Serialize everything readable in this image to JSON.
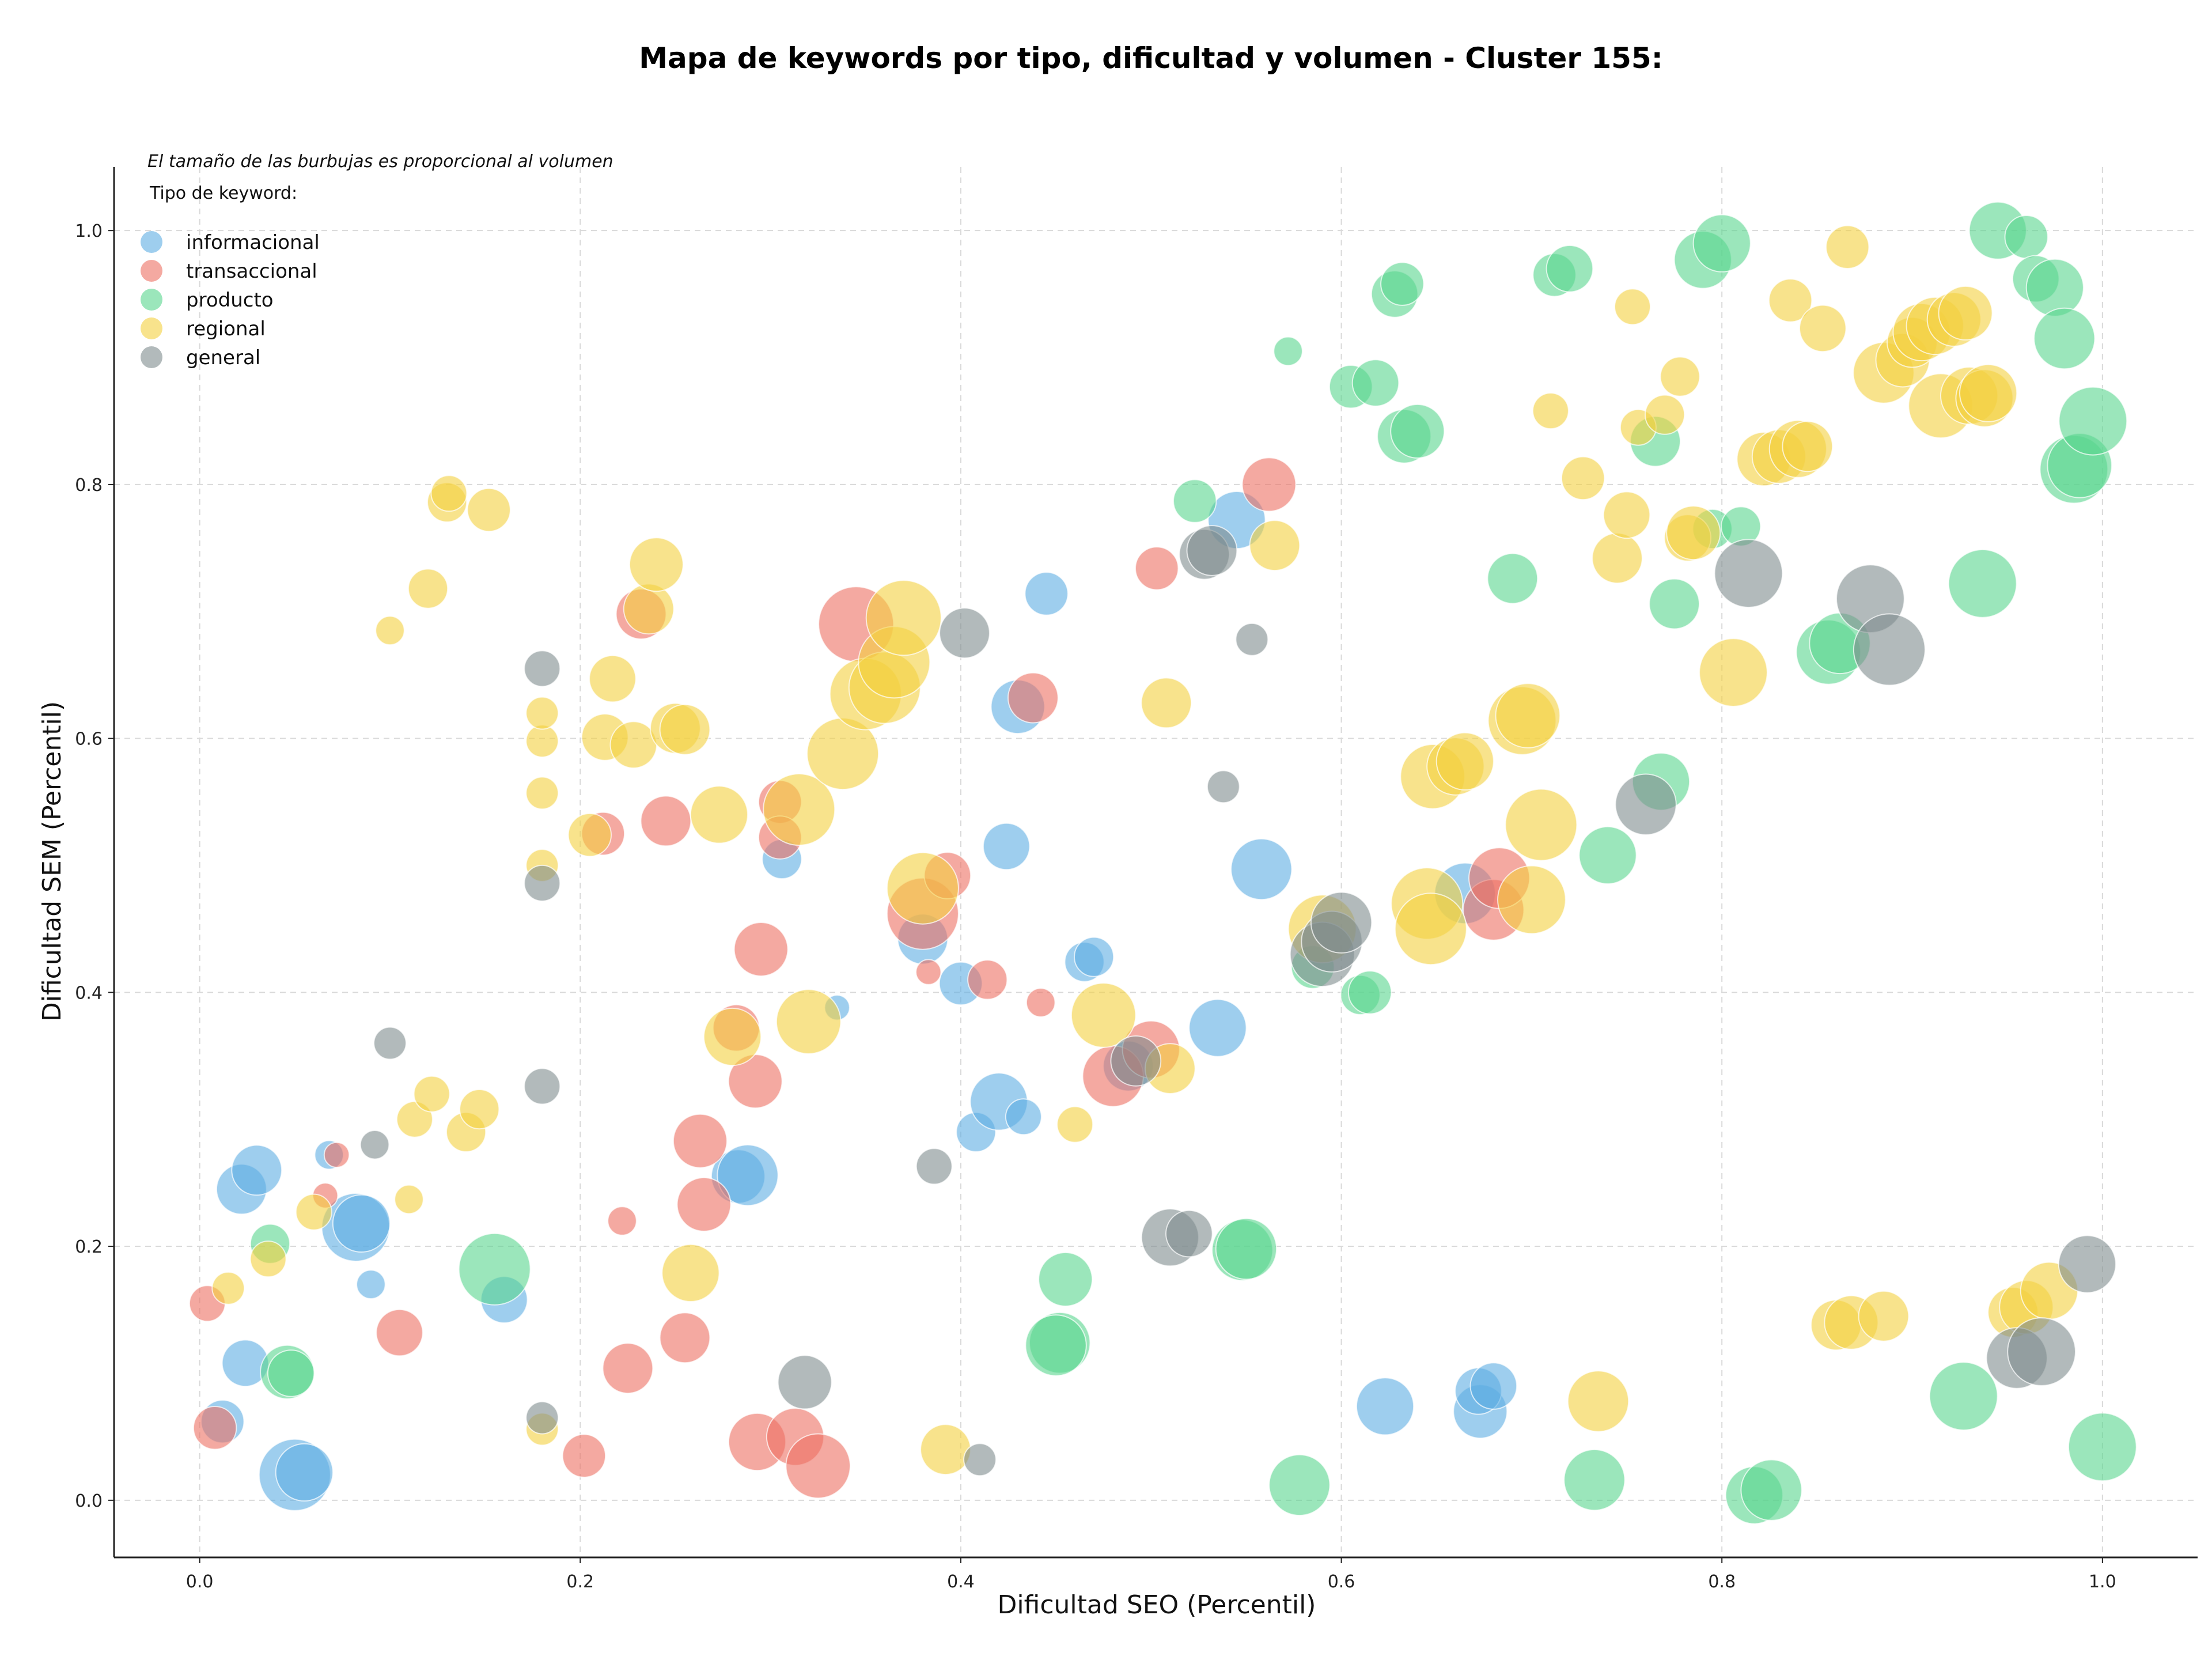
{
  "chart_data": {
    "type": "scatter",
    "title": "Mapa de keywords por tipo, dificultad y volumen - Cluster 155:",
    "xlabel": "Dificultad SEO (Percentil)",
    "ylabel": "Dificultad SEM (Percentil)",
    "annotation": "El tamaño de las burbujas es proporcional al volumen",
    "xlim": [
      -0.045,
      1.05
    ],
    "ylim": [
      -0.045,
      1.05
    ],
    "xticks": [
      "0.0",
      "0.2",
      "0.4",
      "0.6",
      "0.8",
      "1.0"
    ],
    "yticks": [
      "0.0",
      "0.2",
      "0.4",
      "0.6",
      "0.8",
      "1.0"
    ],
    "grid": true,
    "legend": {
      "title": "Tipo de keyword:",
      "placement": "top-left",
      "entries": [
        "informacional",
        "transaccional",
        "producto",
        "regional",
        "general"
      ]
    },
    "series": [
      {
        "name": "informacional",
        "color": "#5dade2",
        "points": [
          [
            0.012,
            0.062,
            12
          ],
          [
            0.022,
            0.245,
            14
          ],
          [
            0.03,
            0.26,
            14
          ],
          [
            0.024,
            0.108,
            13
          ],
          [
            0.05,
            0.02,
            20
          ],
          [
            0.055,
            0.022,
            16
          ],
          [
            0.068,
            0.272,
            8
          ],
          [
            0.082,
            0.215,
            19
          ],
          [
            0.085,
            0.218,
            16
          ],
          [
            0.09,
            0.17,
            8
          ],
          [
            0.16,
            0.158,
            13
          ],
          [
            0.306,
            0.505,
            11
          ],
          [
            0.335,
            0.388,
            7
          ],
          [
            0.38,
            0.442,
            14
          ],
          [
            0.4,
            0.407,
            12
          ],
          [
            0.408,
            0.29,
            11
          ],
          [
            0.42,
            0.314,
            16
          ],
          [
            0.424,
            0.515,
            13
          ],
          [
            0.433,
            0.302,
            10
          ],
          [
            0.43,
            0.625,
            15
          ],
          [
            0.445,
            0.714,
            12
          ],
          [
            0.465,
            0.424,
            11
          ],
          [
            0.47,
            0.428,
            11
          ],
          [
            0.488,
            0.342,
            14
          ],
          [
            0.535,
            0.372,
            16
          ],
          [
            0.545,
            0.772,
            16
          ],
          [
            0.558,
            0.497,
            17
          ],
          [
            0.623,
            0.074,
            16
          ],
          [
            0.665,
            0.478,
            17
          ],
          [
            0.673,
            0.07,
            15
          ],
          [
            0.672,
            0.086,
            13
          ],
          [
            0.68,
            0.09,
            13
          ],
          [
            0.283,
            0.255,
            15
          ],
          [
            0.288,
            0.256,
            17
          ]
        ]
      },
      {
        "name": "transaccional",
        "color": "#ec7063",
        "points": [
          [
            0.004,
            0.155,
            10
          ],
          [
            0.008,
            0.057,
            12
          ],
          [
            0.066,
            0.24,
            7
          ],
          [
            0.072,
            0.272,
            7
          ],
          [
            0.105,
            0.132,
            13
          ],
          [
            0.202,
            0.035,
            12
          ],
          [
            0.212,
            0.525,
            12
          ],
          [
            0.222,
            0.22,
            8
          ],
          [
            0.225,
            0.104,
            14
          ],
          [
            0.232,
            0.698,
            14
          ],
          [
            0.245,
            0.535,
            14
          ],
          [
            0.255,
            0.128,
            14
          ],
          [
            0.263,
            0.283,
            15
          ],
          [
            0.265,
            0.233,
            15
          ],
          [
            0.282,
            0.372,
            13
          ],
          [
            0.292,
            0.33,
            15
          ],
          [
            0.295,
            0.434,
            15
          ],
          [
            0.293,
            0.046,
            16
          ],
          [
            0.305,
            0.55,
            12
          ],
          [
            0.305,
            0.522,
            12
          ],
          [
            0.313,
            0.05,
            16
          ],
          [
            0.325,
            0.027,
            18
          ],
          [
            0.345,
            0.69,
            21
          ],
          [
            0.38,
            0.462,
            20
          ],
          [
            0.383,
            0.416,
            7
          ],
          [
            0.393,
            0.492,
            13
          ],
          [
            0.414,
            0.41,
            11
          ],
          [
            0.438,
            0.632,
            14
          ],
          [
            0.442,
            0.392,
            8
          ],
          [
            0.48,
            0.334,
            17
          ],
          [
            0.5,
            0.355,
            16
          ],
          [
            0.503,
            0.734,
            12
          ],
          [
            0.562,
            0.8,
            15
          ],
          [
            0.68,
            0.465,
            17
          ],
          [
            0.683,
            0.49,
            17
          ]
        ]
      },
      {
        "name": "producto",
        "color": "#58d68d",
        "points": [
          [
            0.037,
            0.202,
            11
          ],
          [
            0.046,
            0.101,
            15
          ],
          [
            0.048,
            0.1,
            13
          ],
          [
            0.155,
            0.182,
            20
          ],
          [
            0.455,
            0.174,
            15
          ],
          [
            0.452,
            0.124,
            17
          ],
          [
            0.45,
            0.122,
            17
          ],
          [
            0.523,
            0.787,
            12
          ],
          [
            0.548,
            0.197,
            17
          ],
          [
            0.55,
            0.198,
            17
          ],
          [
            0.572,
            0.905,
            8
          ],
          [
            0.578,
            0.012,
            17
          ],
          [
            0.585,
            0.42,
            12
          ],
          [
            0.605,
            0.877,
            12
          ],
          [
            0.61,
            0.398,
            11
          ],
          [
            0.615,
            0.4,
            12
          ],
          [
            0.618,
            0.88,
            13
          ],
          [
            0.628,
            0.95,
            13
          ],
          [
            0.632,
            0.958,
            12
          ],
          [
            0.633,
            0.838,
            15
          ],
          [
            0.64,
            0.842,
            15
          ],
          [
            0.69,
            0.726,
            14
          ],
          [
            0.712,
            0.965,
            12
          ],
          [
            0.72,
            0.97,
            13
          ],
          [
            0.733,
            0.016,
            17
          ],
          [
            0.74,
            0.508,
            16
          ],
          [
            0.768,
            0.566,
            16
          ],
          [
            0.765,
            0.834,
            14
          ],
          [
            0.775,
            0.706,
            14
          ],
          [
            0.79,
            0.977,
            16
          ],
          [
            0.8,
            0.99,
            16
          ],
          [
            0.795,
            0.765,
            11
          ],
          [
            0.81,
            0.767,
            11
          ],
          [
            0.817,
            0.004,
            16
          ],
          [
            0.826,
            0.008,
            17
          ],
          [
            0.856,
            0.668,
            18
          ],
          [
            0.862,
            0.675,
            17
          ],
          [
            0.927,
            0.082,
            19
          ],
          [
            0.937,
            0.722,
            19
          ],
          [
            0.945,
            1.0,
            16
          ],
          [
            0.96,
            0.995,
            12
          ],
          [
            0.965,
            0.962,
            13
          ],
          [
            0.975,
            0.955,
            16
          ],
          [
            0.98,
            0.915,
            17
          ],
          [
            0.985,
            0.812,
            19
          ],
          [
            0.988,
            0.815,
            18
          ],
          [
            0.995,
            0.85,
            19
          ],
          [
            1.0,
            0.042,
            19
          ]
        ]
      },
      {
        "name": "regional",
        "color": "#f4d03f",
        "points": [
          [
            0.015,
            0.167,
            9
          ],
          [
            0.036,
            0.19,
            10
          ],
          [
            0.06,
            0.227,
            10
          ],
          [
            0.1,
            0.685,
            8
          ],
          [
            0.11,
            0.237,
            8
          ],
          [
            0.113,
            0.3,
            10
          ],
          [
            0.12,
            0.718,
            11
          ],
          [
            0.122,
            0.32,
            10
          ],
          [
            0.13,
            0.786,
            11
          ],
          [
            0.131,
            0.793,
            10
          ],
          [
            0.14,
            0.29,
            11
          ],
          [
            0.147,
            0.308,
            11
          ],
          [
            0.152,
            0.78,
            12
          ],
          [
            0.18,
            0.056,
            9
          ],
          [
            0.18,
            0.5,
            9
          ],
          [
            0.18,
            0.557,
            9
          ],
          [
            0.18,
            0.598,
            9
          ],
          [
            0.18,
            0.62,
            9
          ],
          [
            0.205,
            0.524,
            12
          ],
          [
            0.213,
            0.601,
            13
          ],
          [
            0.217,
            0.647,
            13
          ],
          [
            0.228,
            0.595,
            13
          ],
          [
            0.236,
            0.702,
            14
          ],
          [
            0.24,
            0.737,
            15
          ],
          [
            0.25,
            0.608,
            14
          ],
          [
            0.255,
            0.607,
            14
          ],
          [
            0.258,
            0.179,
            16
          ],
          [
            0.273,
            0.54,
            16
          ],
          [
            0.28,
            0.365,
            16
          ],
          [
            0.315,
            0.544,
            20
          ],
          [
            0.32,
            0.377,
            18
          ],
          [
            0.338,
            0.588,
            20
          ],
          [
            0.35,
            0.635,
            20
          ],
          [
            0.36,
            0.64,
            20
          ],
          [
            0.365,
            0.66,
            20
          ],
          [
            0.37,
            0.695,
            21
          ],
          [
            0.38,
            0.482,
            20
          ],
          [
            0.392,
            0.04,
            14
          ],
          [
            0.46,
            0.296,
            10
          ],
          [
            0.475,
            0.382,
            18
          ],
          [
            0.51,
            0.34,
            14
          ],
          [
            0.508,
            0.628,
            14
          ],
          [
            0.565,
            0.752,
            14
          ],
          [
            0.59,
            0.45,
            19
          ],
          [
            0.645,
            0.47,
            20
          ],
          [
            0.647,
            0.45,
            20
          ],
          [
            0.648,
            0.57,
            18
          ],
          [
            0.66,
            0.578,
            16
          ],
          [
            0.665,
            0.582,
            16
          ],
          [
            0.695,
            0.614,
            19
          ],
          [
            0.698,
            0.618,
            18
          ],
          [
            0.7,
            0.473,
            19
          ],
          [
            0.705,
            0.532,
            20
          ],
          [
            0.71,
            0.858,
            10
          ],
          [
            0.727,
            0.805,
            12
          ],
          [
            0.735,
            0.078,
            17
          ],
          [
            0.745,
            0.742,
            14
          ],
          [
            0.75,
            0.776,
            13
          ],
          [
            0.753,
            0.94,
            10
          ],
          [
            0.756,
            0.845,
            10
          ],
          [
            0.77,
            0.855,
            11
          ],
          [
            0.778,
            0.885,
            11
          ],
          [
            0.782,
            0.758,
            13
          ],
          [
            0.785,
            0.762,
            15
          ],
          [
            0.806,
            0.652,
            19
          ],
          [
            0.822,
            0.82,
            15
          ],
          [
            0.83,
            0.822,
            15
          ],
          [
            0.836,
            0.945,
            12
          ],
          [
            0.84,
            0.828,
            16
          ],
          [
            0.845,
            0.83,
            14
          ],
          [
            0.853,
            0.923,
            13
          ],
          [
            0.86,
            0.138,
            14
          ],
          [
            0.868,
            0.14,
            15
          ],
          [
            0.866,
            0.987,
            12
          ],
          [
            0.885,
            0.145,
            14
          ],
          [
            0.885,
            0.888,
            17
          ],
          [
            0.895,
            0.898,
            15
          ],
          [
            0.9,
            0.912,
            14
          ],
          [
            0.905,
            0.92,
            16
          ],
          [
            0.912,
            0.925,
            16
          ],
          [
            0.915,
            0.862,
            18
          ],
          [
            0.922,
            0.93,
            15
          ],
          [
            0.928,
            0.935,
            15
          ],
          [
            0.93,
            0.87,
            16
          ],
          [
            0.938,
            0.868,
            16
          ],
          [
            0.94,
            0.872,
            16
          ],
          [
            0.953,
            0.148,
            14
          ],
          [
            0.96,
            0.152,
            15
          ],
          [
            0.972,
            0.165,
            16
          ]
        ]
      },
      {
        "name": "general",
        "color": "#7f8c8d",
        "points": [
          [
            0.092,
            0.28,
            8
          ],
          [
            0.1,
            0.36,
            9
          ],
          [
            0.18,
            0.065,
            9
          ],
          [
            0.18,
            0.326,
            10
          ],
          [
            0.18,
            0.486,
            10
          ],
          [
            0.18,
            0.655,
            10
          ],
          [
            0.318,
            0.093,
            15
          ],
          [
            0.386,
            0.263,
            10
          ],
          [
            0.402,
            0.683,
            14
          ],
          [
            0.41,
            0.032,
            9
          ],
          [
            0.492,
            0.346,
            14
          ],
          [
            0.51,
            0.207,
            16
          ],
          [
            0.52,
            0.21,
            13
          ],
          [
            0.528,
            0.745,
            14
          ],
          [
            0.532,
            0.748,
            14
          ],
          [
            0.538,
            0.562,
            9
          ],
          [
            0.553,
            0.678,
            9
          ],
          [
            0.59,
            0.43,
            18
          ],
          [
            0.595,
            0.44,
            17
          ],
          [
            0.6,
            0.455,
            17
          ],
          [
            0.76,
            0.548,
            17
          ],
          [
            0.814,
            0.73,
            19
          ],
          [
            0.878,
            0.71,
            19
          ],
          [
            0.888,
            0.67,
            20
          ],
          [
            0.955,
            0.112,
            17
          ],
          [
            0.968,
            0.117,
            19
          ],
          [
            0.992,
            0.186,
            16
          ]
        ]
      }
    ]
  }
}
